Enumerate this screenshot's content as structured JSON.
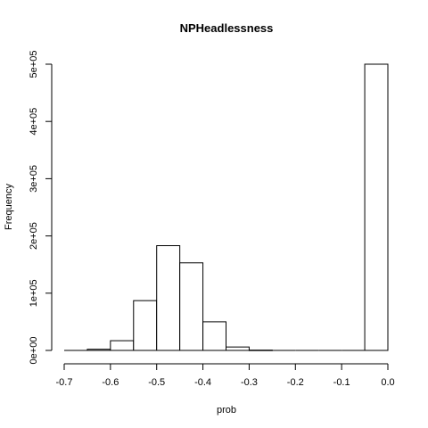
{
  "chart_data": {
    "type": "bar",
    "subtype": "histogram",
    "title": "NPHeadlessness",
    "xlabel": "prob",
    "ylabel": "Frequency",
    "xlim": [
      -0.7,
      0.0
    ],
    "ylim": [
      0,
      500000
    ],
    "bin_width": 0.05,
    "x_ticks": [
      -0.7,
      -0.6,
      -0.5,
      -0.4,
      -0.3,
      -0.2,
      -0.1,
      0.0
    ],
    "x_tick_labels": [
      "-0.7",
      "-0.6",
      "-0.5",
      "-0.4",
      "-0.3",
      "-0.2",
      "-0.1",
      "0.0"
    ],
    "y_ticks": [
      0,
      100000,
      200000,
      300000,
      400000,
      500000
    ],
    "y_tick_labels": [
      "0e+00",
      "1e+05",
      "2e+05",
      "3e+05",
      "4e+05",
      "5e+05"
    ],
    "bins": [
      {
        "start": -0.7,
        "end": -0.65,
        "count": 0
      },
      {
        "start": -0.65,
        "end": -0.6,
        "count": 2000
      },
      {
        "start": -0.6,
        "end": -0.55,
        "count": 17000
      },
      {
        "start": -0.55,
        "end": -0.5,
        "count": 87000
      },
      {
        "start": -0.5,
        "end": -0.45,
        "count": 183000
      },
      {
        "start": -0.45,
        "end": -0.4,
        "count": 153000
      },
      {
        "start": -0.4,
        "end": -0.35,
        "count": 50000
      },
      {
        "start": -0.35,
        "end": -0.3,
        "count": 6000
      },
      {
        "start": -0.3,
        "end": -0.25,
        "count": 500
      },
      {
        "start": -0.25,
        "end": -0.2,
        "count": 0
      },
      {
        "start": -0.2,
        "end": -0.15,
        "count": 0
      },
      {
        "start": -0.15,
        "end": -0.1,
        "count": 0
      },
      {
        "start": -0.1,
        "end": -0.05,
        "count": 0
      },
      {
        "start": -0.05,
        "end": 0.0,
        "count": 500000
      }
    ],
    "grid": false,
    "legend": "none"
  }
}
